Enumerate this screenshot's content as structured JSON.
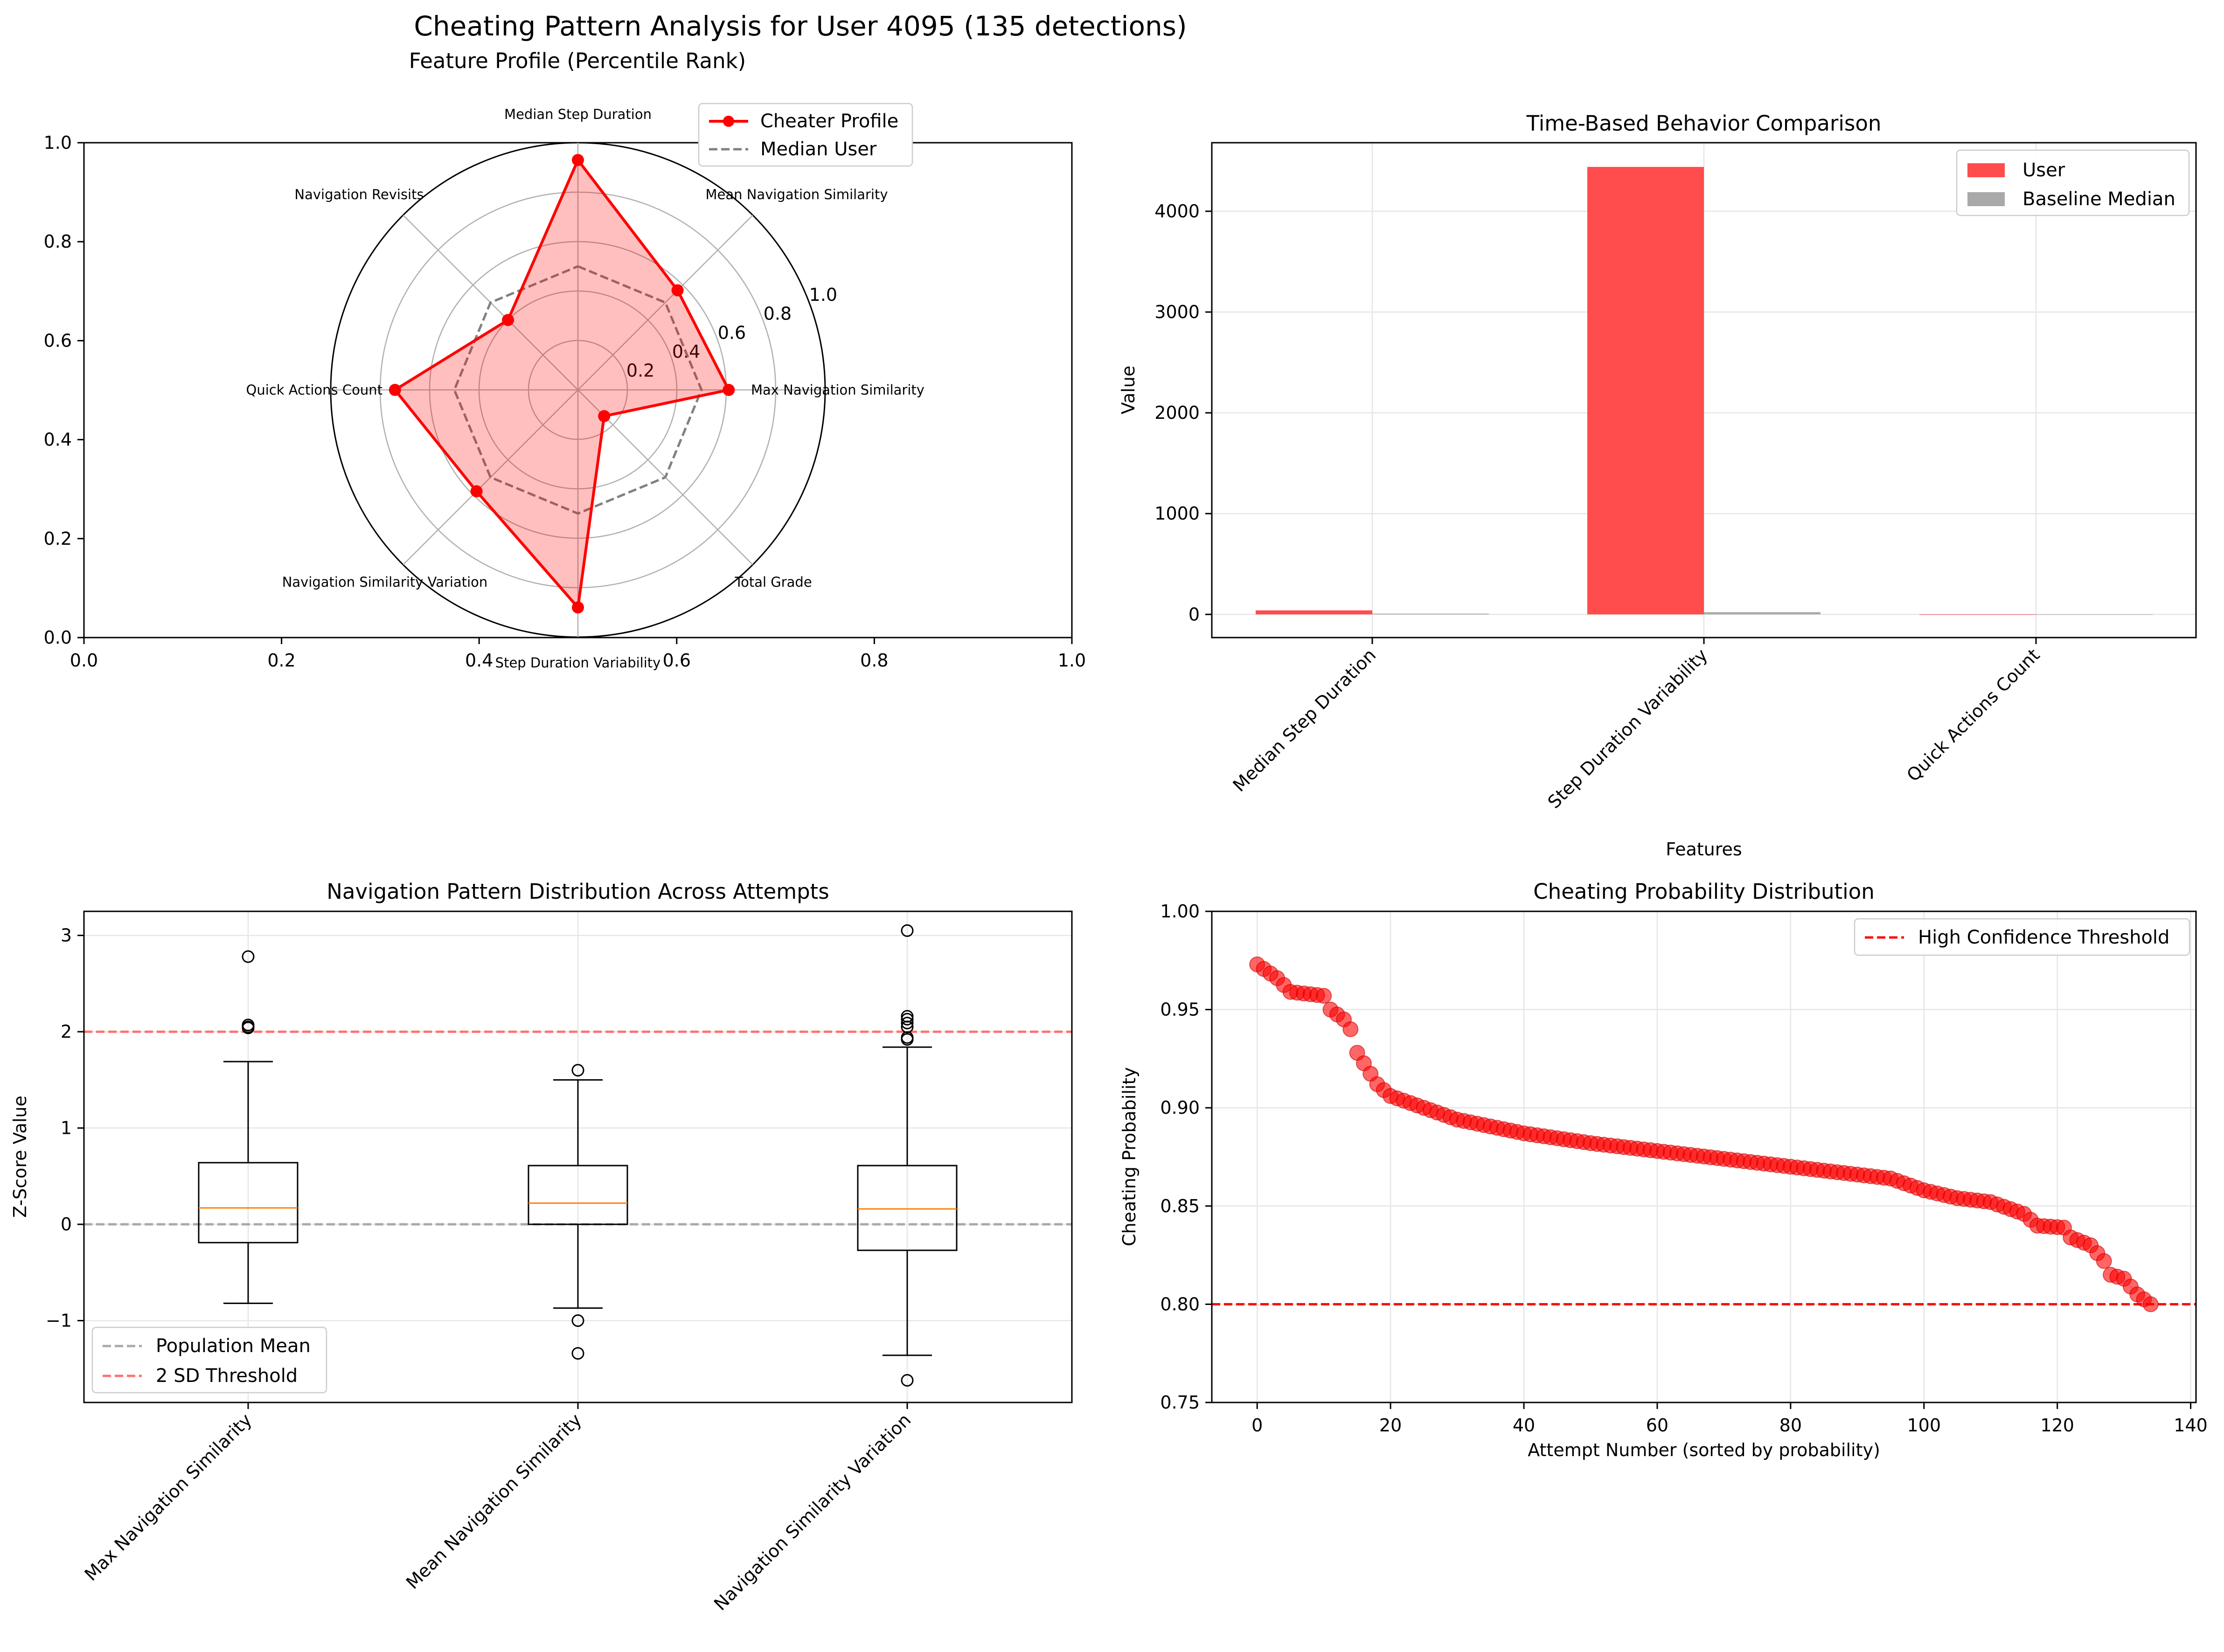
{
  "suptitle": "Cheating Pattern Analysis for User 4095 (135 detections)",
  "chart_data": [
    {
      "type": "radar",
      "title": "Feature Profile (Percentile Rank)",
      "axes": [
        "Median Step Duration",
        "Mean Navigation Similarity",
        "Max Navigation Similarity",
        "Total Grade",
        "Step Duration Variability",
        "Navigation Similarity Variation",
        "Quick Actions Count",
        "Navigation Revisits"
      ],
      "radial_ticks": [
        "0.2",
        "0.4",
        "0.6",
        "0.8",
        "1.0"
      ],
      "series": [
        {
          "name": "Cheater Profile",
          "values": [
            0.93,
            0.57,
            0.61,
            0.15,
            0.88,
            0.58,
            0.74,
            0.4
          ],
          "color": "#ff0000"
        },
        {
          "name": "Median User",
          "values": [
            0.5,
            0.5,
            0.5,
            0.5,
            0.5,
            0.5,
            0.5,
            0.5
          ],
          "color": "#808080"
        }
      ],
      "cart_xticks": [
        "0.0",
        "0.2",
        "0.4",
        "0.6",
        "0.8",
        "1.0"
      ],
      "cart_yticks": [
        "0.0",
        "0.2",
        "0.4",
        "0.6",
        "0.8",
        "1.0"
      ],
      "legend": "top-right"
    },
    {
      "type": "bar",
      "title": "Time-Based Behavior Comparison",
      "xlabel": "Features",
      "ylabel": "Value",
      "categories": [
        "Median Step Duration",
        "Step Duration Variability",
        "Quick Actions Count"
      ],
      "series": [
        {
          "name": "User",
          "values": [
            40,
            4440,
            0
          ],
          "color": "#ff4c4c"
        },
        {
          "name": "Baseline Median",
          "values": [
            8,
            22,
            0
          ],
          "color": "#a9a9a9"
        }
      ],
      "ylim": [
        -230,
        4680
      ],
      "yticks": [
        "0",
        "1000",
        "2000",
        "3000",
        "4000"
      ],
      "grid": true,
      "legend": "top-right"
    },
    {
      "type": "boxplot",
      "title": "Navigation Pattern Distribution Across Attempts",
      "ylabel": "Z-Score Value",
      "categories": [
        "Max Navigation Similarity",
        "Mean Navigation Similarity",
        "Navigation Similarity Variation"
      ],
      "boxes": [
        {
          "whisker_low": -0.82,
          "q1": -0.19,
          "median": 0.17,
          "q3": 0.64,
          "whisker_high": 1.69,
          "outliers": [
            2.78,
            2.07,
            2.05,
            2.04
          ]
        },
        {
          "whisker_low": -0.87,
          "q1": 0.0,
          "median": 0.22,
          "q3": 0.61,
          "whisker_high": 1.5,
          "outliers": [
            1.6,
            -1.0,
            -1.34
          ]
        },
        {
          "whisker_low": -1.36,
          "q1": -0.27,
          "median": 0.16,
          "q3": 0.61,
          "whisker_high": 1.84,
          "outliers": [
            3.05,
            2.16,
            2.13,
            2.09,
            2.05,
            1.94,
            1.92,
            -1.62
          ]
        }
      ],
      "ylim": [
        -1.85,
        3.25
      ],
      "yticks": [
        "−1",
        "0",
        "1",
        "2",
        "3"
      ],
      "reference_lines": [
        {
          "name": "Population Mean",
          "y": 0,
          "color": "#a9a9a9"
        },
        {
          "name": "2 SD Threshold",
          "y": 2,
          "color": "#ff7070"
        }
      ],
      "grid": true,
      "legend": "bottom-left"
    },
    {
      "type": "scatter",
      "title": "Cheating Probability Distribution",
      "xlabel": "Attempt Number (sorted by probability)",
      "ylabel": "Cheating Probability",
      "xlim": [
        -6.8,
        140.8
      ],
      "ylim": [
        0.75,
        1.0
      ],
      "xticks": [
        "0",
        "20",
        "40",
        "60",
        "80",
        "100",
        "120",
        "140"
      ],
      "yticks": [
        "0.75",
        "0.80",
        "0.85",
        "0.90",
        "0.95",
        "1.00"
      ],
      "series": [
        {
          "name": "",
          "color": "#ff0000",
          "keypoints": [
            [
              0,
              0.973
            ],
            [
              3,
              0.966
            ],
            [
              5,
              0.959
            ],
            [
              10,
              0.957
            ],
            [
              11,
              0.95
            ],
            [
              13,
              0.945
            ],
            [
              14,
              0.94
            ],
            [
              15,
              0.928
            ],
            [
              18,
              0.912
            ],
            [
              20,
              0.906
            ],
            [
              25,
              0.9
            ],
            [
              30,
              0.894
            ],
            [
              40,
              0.887
            ],
            [
              50,
              0.882
            ],
            [
              60,
              0.878
            ],
            [
              70,
              0.874
            ],
            [
              80,
              0.87
            ],
            [
              90,
              0.866
            ],
            [
              95,
              0.864
            ],
            [
              100,
              0.858
            ],
            [
              105,
              0.854
            ],
            [
              110,
              0.852
            ],
            [
              115,
              0.846
            ],
            [
              117,
              0.84
            ],
            [
              121,
              0.839
            ],
            [
              122,
              0.834
            ],
            [
              125,
              0.83
            ],
            [
              127,
              0.822
            ],
            [
              128,
              0.815
            ],
            [
              130,
              0.813
            ],
            [
              132,
              0.805
            ],
            [
              134,
              0.8
            ]
          ]
        }
      ],
      "reference_lines": [
        {
          "name": "High Confidence Threshold",
          "y": 0.8,
          "color": "#ff0000"
        }
      ],
      "grid": true,
      "legend": "top-right"
    }
  ]
}
